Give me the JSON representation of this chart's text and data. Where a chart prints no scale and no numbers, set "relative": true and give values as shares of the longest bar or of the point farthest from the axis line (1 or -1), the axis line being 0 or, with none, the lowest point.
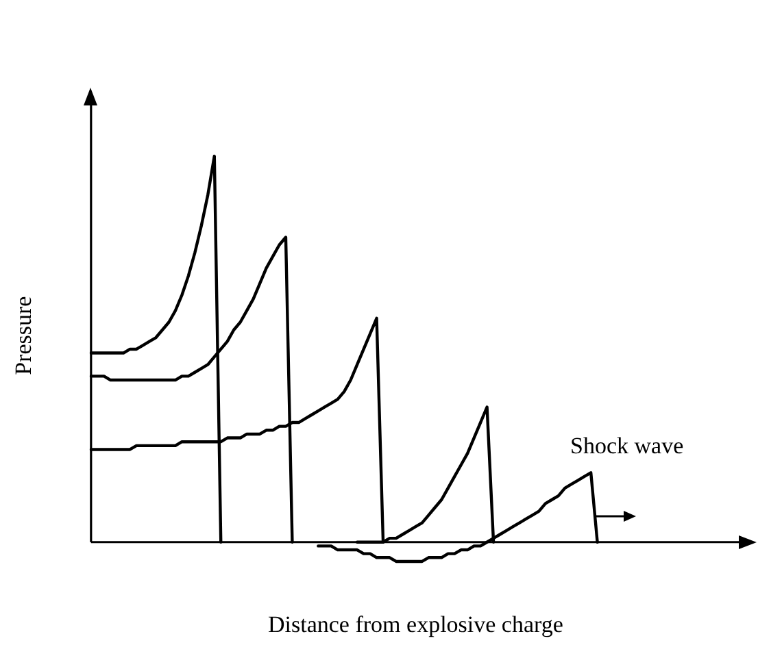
{
  "chart_data": {
    "type": "line",
    "relative": true,
    "xlabel": "Distance from explosive charge",
    "ylabel": "Pressure",
    "grid": false,
    "legend": false,
    "marker": "none",
    "line_style": "solid",
    "annotations": [
      "Shock wave"
    ],
    "categories": [
      null,
      null,
      null,
      null,
      null,
      null,
      null,
      null,
      null,
      null,
      null,
      null,
      null,
      null,
      null,
      null,
      null,
      null,
      null,
      null,
      null,
      null,
      null,
      null,
      null,
      null,
      null,
      null,
      null,
      null,
      null,
      null,
      null,
      null,
      null,
      null,
      null,
      null,
      null,
      null,
      null,
      null,
      null,
      null,
      null,
      null,
      null,
      null,
      null,
      null,
      null,
      null,
      null,
      null,
      null,
      null,
      null,
      null,
      null,
      null,
      null,
      null,
      null,
      null,
      null,
      null,
      null,
      null,
      null,
      null,
      null,
      null,
      null,
      null,
      null,
      null,
      null,
      null,
      null,
      null,
      null,
      null,
      null,
      null,
      null,
      null,
      null,
      null,
      null,
      null,
      null,
      null,
      null,
      null,
      null,
      null,
      null,
      null,
      null,
      null,
      null
    ],
    "series": [
      {
        "color": "#000000",
        "values": [
          0.49,
          0.49,
          0.49,
          0.49,
          0.49,
          0.49,
          0.5,
          0.5,
          0.51,
          0.52,
          0.53,
          0.55,
          0.57,
          0.6,
          0.64,
          0.69,
          0.75,
          0.82,
          0.9,
          1.0,
          0,
          null,
          null,
          null,
          null,
          null,
          null,
          null,
          null,
          null,
          null,
          null,
          null,
          null,
          null,
          null,
          null,
          null,
          null,
          null,
          null,
          null,
          null,
          null,
          null,
          null,
          null,
          null,
          null,
          null,
          null,
          null,
          null,
          null,
          null,
          null,
          null,
          null,
          null,
          null,
          null,
          null,
          null,
          null,
          null,
          null,
          null,
          null,
          null,
          null,
          null,
          null,
          null,
          null,
          null,
          null,
          null,
          null,
          null,
          null,
          null,
          null,
          null,
          null,
          null,
          null,
          null,
          null,
          null,
          null,
          null,
          null,
          null,
          null,
          null,
          null,
          null,
          null,
          null,
          null,
          null
        ]
      },
      {
        "color": "#000000",
        "values": [
          0.43,
          0.43,
          0.43,
          0.42,
          0.42,
          0.42,
          0.42,
          0.42,
          0.42,
          0.42,
          0.42,
          0.42,
          0.42,
          0.42,
          0.43,
          0.43,
          0.44,
          0.45,
          0.46,
          0.48,
          0.5,
          0.52,
          0.55,
          0.57,
          0.6,
          0.63,
          0.67,
          0.71,
          0.74,
          0.77,
          0.79,
          0,
          null,
          null,
          null,
          null,
          null,
          null,
          null,
          null,
          null,
          null,
          null,
          null,
          null,
          null,
          null,
          null,
          null,
          null,
          null,
          null,
          null,
          null,
          null,
          null,
          null,
          null,
          null,
          null,
          null,
          null,
          null,
          null,
          null,
          null,
          null,
          null,
          null,
          null,
          null,
          null,
          null,
          null,
          null,
          null,
          null,
          null,
          null,
          null,
          null,
          null,
          null,
          null,
          null,
          null,
          null,
          null,
          null,
          null,
          null,
          null,
          null,
          null,
          null,
          null,
          null,
          null,
          null,
          null,
          null
        ]
      },
      {
        "color": "#000000",
        "values": [
          0.24,
          0.24,
          0.24,
          0.24,
          0.24,
          0.24,
          0.24,
          0.25,
          0.25,
          0.25,
          0.25,
          0.25,
          0.25,
          0.25,
          0.26,
          0.26,
          0.26,
          0.26,
          0.26,
          0.26,
          0.26,
          0.27,
          0.27,
          0.27,
          0.28,
          0.28,
          0.28,
          0.29,
          0.29,
          0.3,
          0.3,
          0.31,
          0.31,
          0.32,
          0.33,
          0.34,
          0.35,
          0.36,
          0.37,
          0.39,
          0.42,
          0.46,
          0.5,
          0.54,
          0.58,
          0,
          null,
          null,
          null,
          null,
          null,
          null,
          null,
          null,
          null,
          null,
          null,
          null,
          null,
          null,
          null,
          null,
          null,
          null,
          null,
          null,
          null,
          null,
          null,
          null,
          null,
          null,
          null,
          null,
          null,
          null,
          null,
          null,
          null,
          null,
          null,
          null,
          null,
          null,
          null,
          null,
          null,
          null,
          null,
          null,
          null,
          null,
          null,
          null,
          null,
          null,
          null,
          null,
          null,
          null,
          null
        ]
      },
      {
        "color": "#000000",
        "values": [
          null,
          null,
          null,
          null,
          null,
          null,
          null,
          null,
          null,
          null,
          null,
          null,
          null,
          null,
          null,
          null,
          null,
          null,
          null,
          null,
          null,
          null,
          null,
          null,
          null,
          null,
          null,
          null,
          null,
          null,
          null,
          null,
          null,
          null,
          null,
          null,
          null,
          null,
          null,
          null,
          null,
          0,
          0,
          0,
          0,
          0,
          0.01,
          0.01,
          0.02,
          0.03,
          0.04,
          0.05,
          0.07,
          0.09,
          0.11,
          0.14,
          0.17,
          0.2,
          0.23,
          0.27,
          0.31,
          0.35,
          0,
          null,
          null,
          null,
          null,
          null,
          null,
          null,
          null,
          null,
          null,
          null,
          null,
          null,
          null,
          null,
          null,
          null,
          null,
          null,
          null,
          null,
          null,
          null,
          null,
          null,
          null,
          null,
          null,
          null,
          null,
          null,
          null,
          null,
          null,
          null,
          null,
          null,
          null
        ]
      },
      {
        "color": "#000000",
        "values": [
          null,
          null,
          null,
          null,
          null,
          null,
          null,
          null,
          null,
          null,
          null,
          null,
          null,
          null,
          null,
          null,
          null,
          null,
          null,
          null,
          null,
          null,
          null,
          null,
          null,
          null,
          null,
          null,
          null,
          null,
          null,
          null,
          null,
          null,
          null,
          -0.01,
          -0.01,
          -0.01,
          -0.02,
          -0.02,
          -0.02,
          -0.02,
          -0.03,
          -0.03,
          -0.04,
          -0.04,
          -0.04,
          -0.05,
          -0.05,
          -0.05,
          -0.05,
          -0.05,
          -0.04,
          -0.04,
          -0.04,
          -0.03,
          -0.03,
          -0.02,
          -0.02,
          -0.01,
          -0.01,
          0,
          0.01,
          0.02,
          0.03,
          0.04,
          0.05,
          0.06,
          0.07,
          0.08,
          0.1,
          0.11,
          0.12,
          0.14,
          0.15,
          0.16,
          0.17,
          0.18,
          0,
          null,
          null,
          null,
          null,
          null,
          null,
          null,
          null,
          null,
          null,
          null,
          null,
          null,
          null,
          null,
          null,
          null,
          null,
          null,
          null,
          null,
          null
        ]
      }
    ]
  }
}
